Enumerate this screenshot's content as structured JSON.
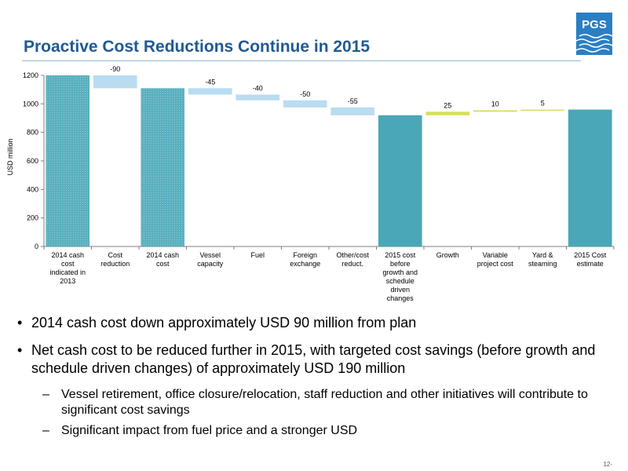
{
  "slide": {
    "title": "Proactive Cost Reductions Continue in 2015",
    "logo_text": "PGS",
    "page_number": "12-"
  },
  "chart_data": {
    "type": "waterfall",
    "ylabel": "USD million",
    "ylim": [
      0,
      1200
    ],
    "yticks": [
      0,
      200,
      400,
      600,
      800,
      1000,
      1200
    ],
    "categories": [
      "2014 cash cost indicated in 2013",
      "Cost reduction",
      "2014 cash cost",
      "Vessel capacity",
      "Fuel",
      "Foreign exchange",
      "Other/cost reduct.",
      "2015 cost before growth and schedule driven changes",
      "Growth",
      "Variable project cost",
      "Yard & steaming",
      "2015 Cost estimate"
    ],
    "category_lines": [
      [
        "2014 cash",
        "cost",
        "indicated in",
        "2013"
      ],
      [
        "Cost",
        "reduction"
      ],
      [
        "2014 cash",
        "cost"
      ],
      [
        "Vessel",
        "capacity"
      ],
      [
        "Fuel"
      ],
      [
        "Foreign",
        "exchange"
      ],
      [
        "Other/cost",
        "reduct."
      ],
      [
        "2015 cost",
        "before",
        "growth and",
        "schedule",
        "driven",
        "changes"
      ],
      [
        "Growth"
      ],
      [
        "Variable",
        "project cost"
      ],
      [
        "Yard &",
        "steaming"
      ],
      [
        "2015 Cost",
        "estimate"
      ]
    ],
    "bars": [
      {
        "kind": "total-2014",
        "value": 1200,
        "label": null
      },
      {
        "kind": "decrease",
        "value": -90,
        "label": "-90"
      },
      {
        "kind": "total-2014",
        "value": 1110,
        "label": null
      },
      {
        "kind": "decrease",
        "value": -45,
        "label": "-45"
      },
      {
        "kind": "decrease",
        "value": -40,
        "label": "-40"
      },
      {
        "kind": "decrease",
        "value": -50,
        "label": "-50"
      },
      {
        "kind": "decrease",
        "value": -55,
        "label": "-55"
      },
      {
        "kind": "total",
        "value": 920,
        "label": null
      },
      {
        "kind": "increase",
        "value": 25,
        "label": "25"
      },
      {
        "kind": "increase",
        "value": 10,
        "label": "10"
      },
      {
        "kind": "increase",
        "value": 5,
        "label": "5"
      },
      {
        "kind": "total",
        "value": 960,
        "label": null
      }
    ],
    "colors": {
      "total-2014": "#5bb0bf",
      "total": "#4aa7b8",
      "decrease": "#b9dcf1",
      "increase": "#d4df5e",
      "axis": "#7f7f7f"
    }
  },
  "bullets": [
    {
      "text": "2014 cash cost down approximately USD 90 million from plan",
      "level": 1
    },
    {
      "text": "Net cash cost to be reduced further in 2015, with targeted cost savings (before growth and schedule driven changes) of approximately USD 190 million",
      "level": 1
    },
    {
      "text": "Vessel retirement, office closure/relocation, staff reduction and other initiatives will contribute to significant cost savings",
      "level": 2
    },
    {
      "text": "Significant impact from fuel price and a stronger USD",
      "level": 2
    }
  ],
  "bullet_glyphs": {
    "level1": "•",
    "level2": "–"
  }
}
